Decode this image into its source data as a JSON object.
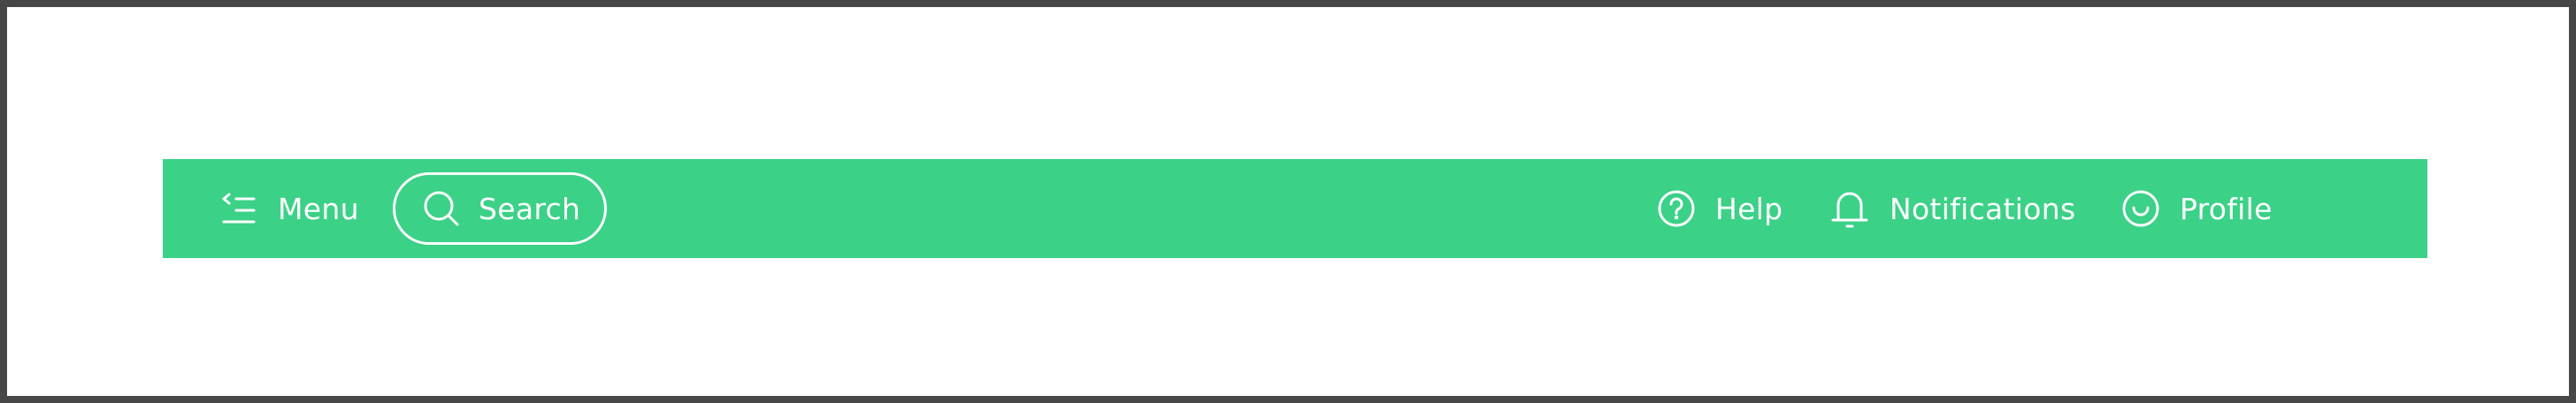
{
  "colors": {
    "navbar_background": "#3bd187",
    "foreground": "#ffffff",
    "frame_border": "#474747"
  },
  "navbar": {
    "menu": {
      "label": "Menu",
      "icon": "menu-collapse-icon"
    },
    "search": {
      "label": "Search",
      "icon": "search-icon"
    },
    "help": {
      "label": "Help",
      "icon": "help-icon"
    },
    "notifications": {
      "label": "Notifications",
      "icon": "bell-icon"
    },
    "profile": {
      "label": "Profile",
      "icon": "smiley-icon"
    }
  }
}
